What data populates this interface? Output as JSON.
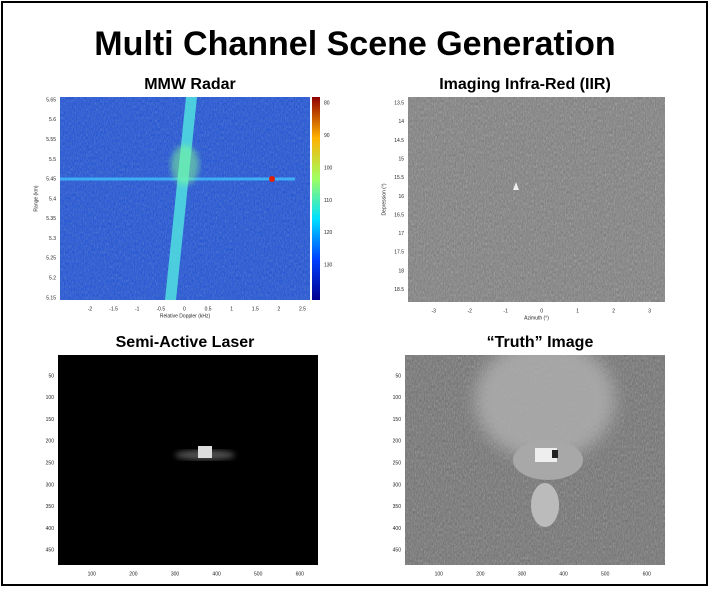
{
  "header": {
    "title": "Multi Channel Scene Generation"
  },
  "panels": [
    {
      "title": "MMW Radar",
      "xlabel": "Relative Doppler (kHz)",
      "ylabel": "Range (km)",
      "xticks": [
        "-2",
        "-1.5",
        "-1",
        "-0.5",
        "0",
        "0.5",
        "1",
        "1.5",
        "2",
        "2.5"
      ],
      "yticks": [
        "5.65",
        "5.6",
        "5.55",
        "5.5",
        "5.45",
        "5.4",
        "5.35",
        "5.3",
        "5.25",
        "5.2",
        "5.15"
      ],
      "colorbar_ticks": [
        "80",
        "90",
        "100",
        "110",
        "120",
        "130"
      ]
    },
    {
      "title": "Imaging Infra-Red (IIR)",
      "xlabel": "Azimuth (°)",
      "ylabel": "Depression (°)",
      "xticks": [
        "-3",
        "-2",
        "-1",
        "0",
        "1",
        "2",
        "3"
      ],
      "yticks": [
        "13.5",
        "14",
        "14.5",
        "15",
        "15.5",
        "16",
        "16.5",
        "17",
        "17.5",
        "18",
        "18.5"
      ]
    },
    {
      "title": "Semi-Active Laser",
      "xticks": [
        "100",
        "200",
        "300",
        "400",
        "500",
        "600"
      ],
      "yticks": [
        "50",
        "100",
        "150",
        "200",
        "250",
        "300",
        "350",
        "400",
        "450"
      ]
    },
    {
      "title": "“Truth” Image",
      "xticks": [
        "100",
        "200",
        "300",
        "400",
        "500",
        "600"
      ],
      "yticks": [
        "50",
        "100",
        "150",
        "200",
        "250",
        "300",
        "350",
        "400",
        "450"
      ]
    }
  ]
}
